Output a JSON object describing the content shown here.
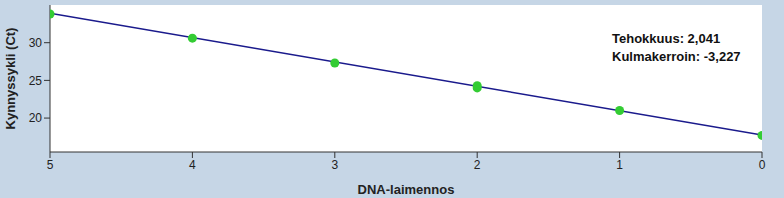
{
  "chart_data": {
    "type": "scatter",
    "x_label": "DNA-laimennos",
    "y_label": "Kynnyssykli (Ct)",
    "annotations": [
      "Tehokkuus: 2,041",
      "Kulmakerroin: -3,227"
    ],
    "xlim": [
      0,
      5
    ],
    "xticks": [
      0,
      1,
      2,
      3,
      4,
      5
    ],
    "ylim": [
      15.5,
      35
    ],
    "yticks": [
      20,
      25,
      30
    ],
    "grid": false,
    "log": false,
    "series": [
      {
        "type": "scatter",
        "marker": "circle",
        "color": "#33cc33",
        "x": [
          5,
          4,
          3,
          2,
          2,
          1,
          0
        ],
        "values": [
          33.8,
          30.6,
          27.3,
          24.0,
          24.3,
          21.0,
          17.7
        ]
      },
      {
        "type": "line",
        "line_style": "solid",
        "color": "#1a1a8c",
        "x": [
          0,
          5
        ],
        "values": [
          17.75,
          33.9
        ]
      }
    ]
  }
}
